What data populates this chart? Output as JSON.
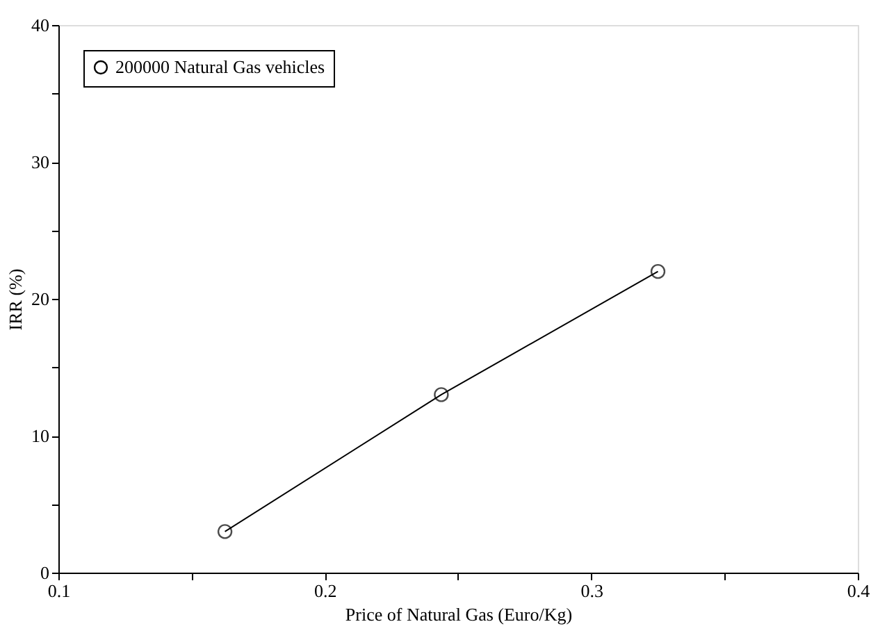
{
  "chart_data": {
    "type": "line",
    "xlabel": "Price of Natural Gas (Euro/Kg)",
    "ylabel": "IRR (%)",
    "x": [
      0.1625,
      0.2437,
      0.325
    ],
    "series": [
      {
        "name": "200000 Natural Gas vehicles",
        "color": "#000000",
        "values": [
          3,
          13,
          22
        ]
      }
    ],
    "xlim": [
      0.1,
      0.4
    ],
    "xticks": [
      0.1,
      {
        "value": 0.15,
        "label": null
      },
      0.2,
      {
        "value": 0.25,
        "label": null
      },
      0.3,
      {
        "value": 0.35,
        "label": null
      },
      0.4
    ],
    "ylim": [
      0,
      40
    ],
    "yticks": [
      0,
      {
        "value": 5,
        "label": null
      },
      10,
      {
        "value": 15,
        "label": null
      },
      20,
      {
        "value": 25,
        "label": null
      },
      30,
      {
        "value": 35,
        "label": null
      },
      40
    ],
    "grid": false,
    "legend": "top left",
    "marker": "circle",
    "line_style": "solid"
  }
}
